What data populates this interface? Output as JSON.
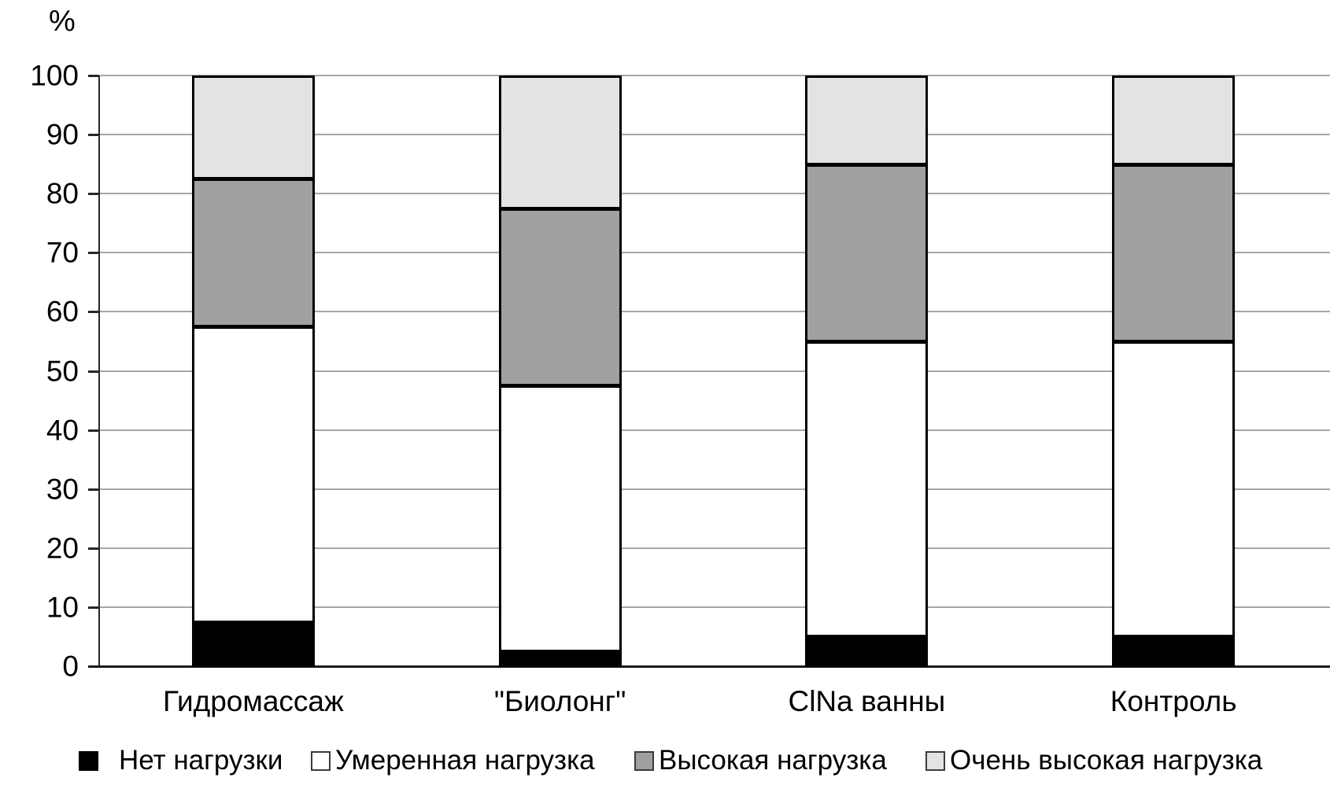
{
  "chart_data": {
    "type": "bar",
    "stacked": true,
    "title": "",
    "ylabel": "%",
    "xlabel": "",
    "ylim": [
      0,
      100
    ],
    "yticks": [
      0,
      10,
      20,
      30,
      40,
      50,
      60,
      70,
      80,
      90,
      100
    ],
    "grid": true,
    "legend_position": "bottom",
    "categories": [
      "Гидромассаж",
      "\"Биолонг\"",
      "ClNa ванны",
      "Контроль"
    ],
    "series": [
      {
        "name": "Нет нагрузки",
        "color": "#000000",
        "values": [
          7.5,
          2.5,
          5,
          5
        ]
      },
      {
        "name": "Умеренная нагрузка",
        "color": "#ffffff",
        "values": [
          50,
          45,
          50,
          50
        ]
      },
      {
        "name": "Высокая нагрузка",
        "color": "#a0a0a0",
        "values": [
          25,
          30,
          30,
          30
        ]
      },
      {
        "name": "Очень высокая нагрузка",
        "color": "#e3e3e2",
        "values": [
          17.5,
          22.5,
          15,
          15
        ]
      }
    ],
    "colors": {
      "gridline": "#a6a6a6",
      "axis": "#262626",
      "segment_border": "#000000",
      "background": "#ffffff"
    }
  }
}
